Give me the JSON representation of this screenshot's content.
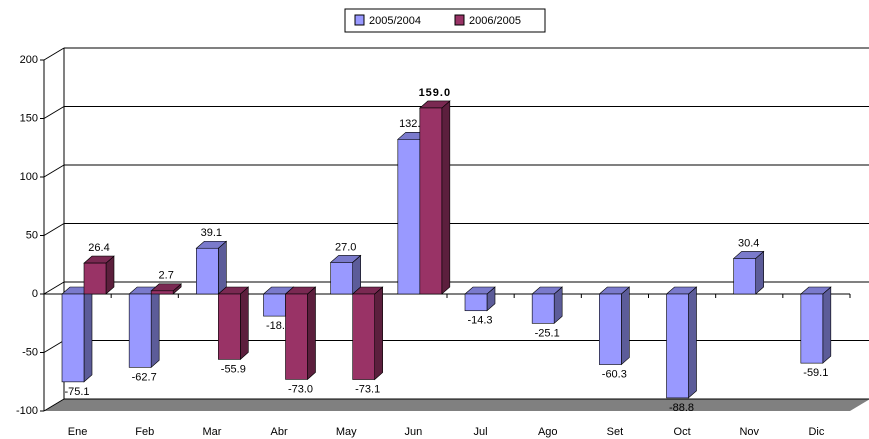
{
  "chart_data": {
    "type": "bar3d",
    "categories": [
      "Ene",
      "Feb",
      "Mar",
      "Abr",
      "May",
      "Jun",
      "Jul",
      "Ago",
      "Set",
      "Oct",
      "Nov",
      "Dic"
    ],
    "series": [
      {
        "name": "2005/2004",
        "color": "#9999ff",
        "values": [
          -75.1,
          -62.7,
          39.1,
          -18.9,
          27.0,
          132.2,
          -14.3,
          -25.1,
          -60.3,
          -88.8,
          30.4,
          -59.1
        ],
        "value_labels": [
          "-75.1",
          "-62.7",
          "39.1",
          "-18.9",
          "27.0",
          "132.2",
          "-14.3",
          "-25.1",
          "-60.3",
          "-88.8",
          "30.4",
          "-59.1"
        ]
      },
      {
        "name": "2006/2005",
        "color": "#993366",
        "values": [
          26.4,
          2.7,
          -55.9,
          -73.0,
          -73.1,
          159.0,
          null,
          null,
          null,
          null,
          null,
          null
        ],
        "value_labels": [
          "26.4",
          "2.7",
          "-55.9",
          "-73.0",
          "-73.1",
          "159.0",
          null,
          null,
          null,
          null,
          null,
          null
        ]
      }
    ],
    "ylim": [
      -100,
      200
    ],
    "yticks": [
      -100,
      -50,
      0,
      50,
      100,
      150,
      200
    ],
    "grid": true,
    "legend": "top"
  }
}
